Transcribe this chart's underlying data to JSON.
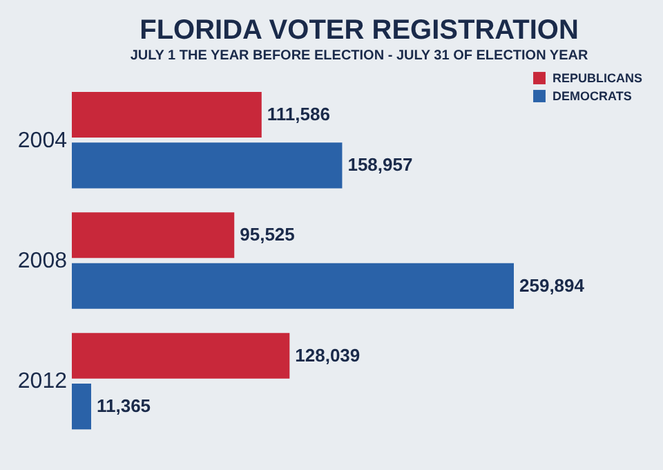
{
  "chart_data": {
    "type": "bar",
    "orientation": "horizontal",
    "title": "FLORIDA VOTER REGISTRATION",
    "subtitle": "JULY 1 THE YEAR BEFORE ELECTION - JULY 31 OF ELECTION YEAR",
    "categories": [
      "2004",
      "2008",
      "2012"
    ],
    "series": [
      {
        "name": "REPUBLICANS",
        "color": "#c8283a",
        "values": [
          111586,
          95525,
          128039
        ],
        "value_labels": [
          "111,586",
          "95,525",
          "128,039"
        ]
      },
      {
        "name": "DEMOCRATS",
        "color": "#2a62a8",
        "values": [
          158957,
          259894,
          11365
        ],
        "value_labels": [
          "158,957",
          "259,894",
          "11,365"
        ]
      }
    ],
    "legend": "top right"
  }
}
